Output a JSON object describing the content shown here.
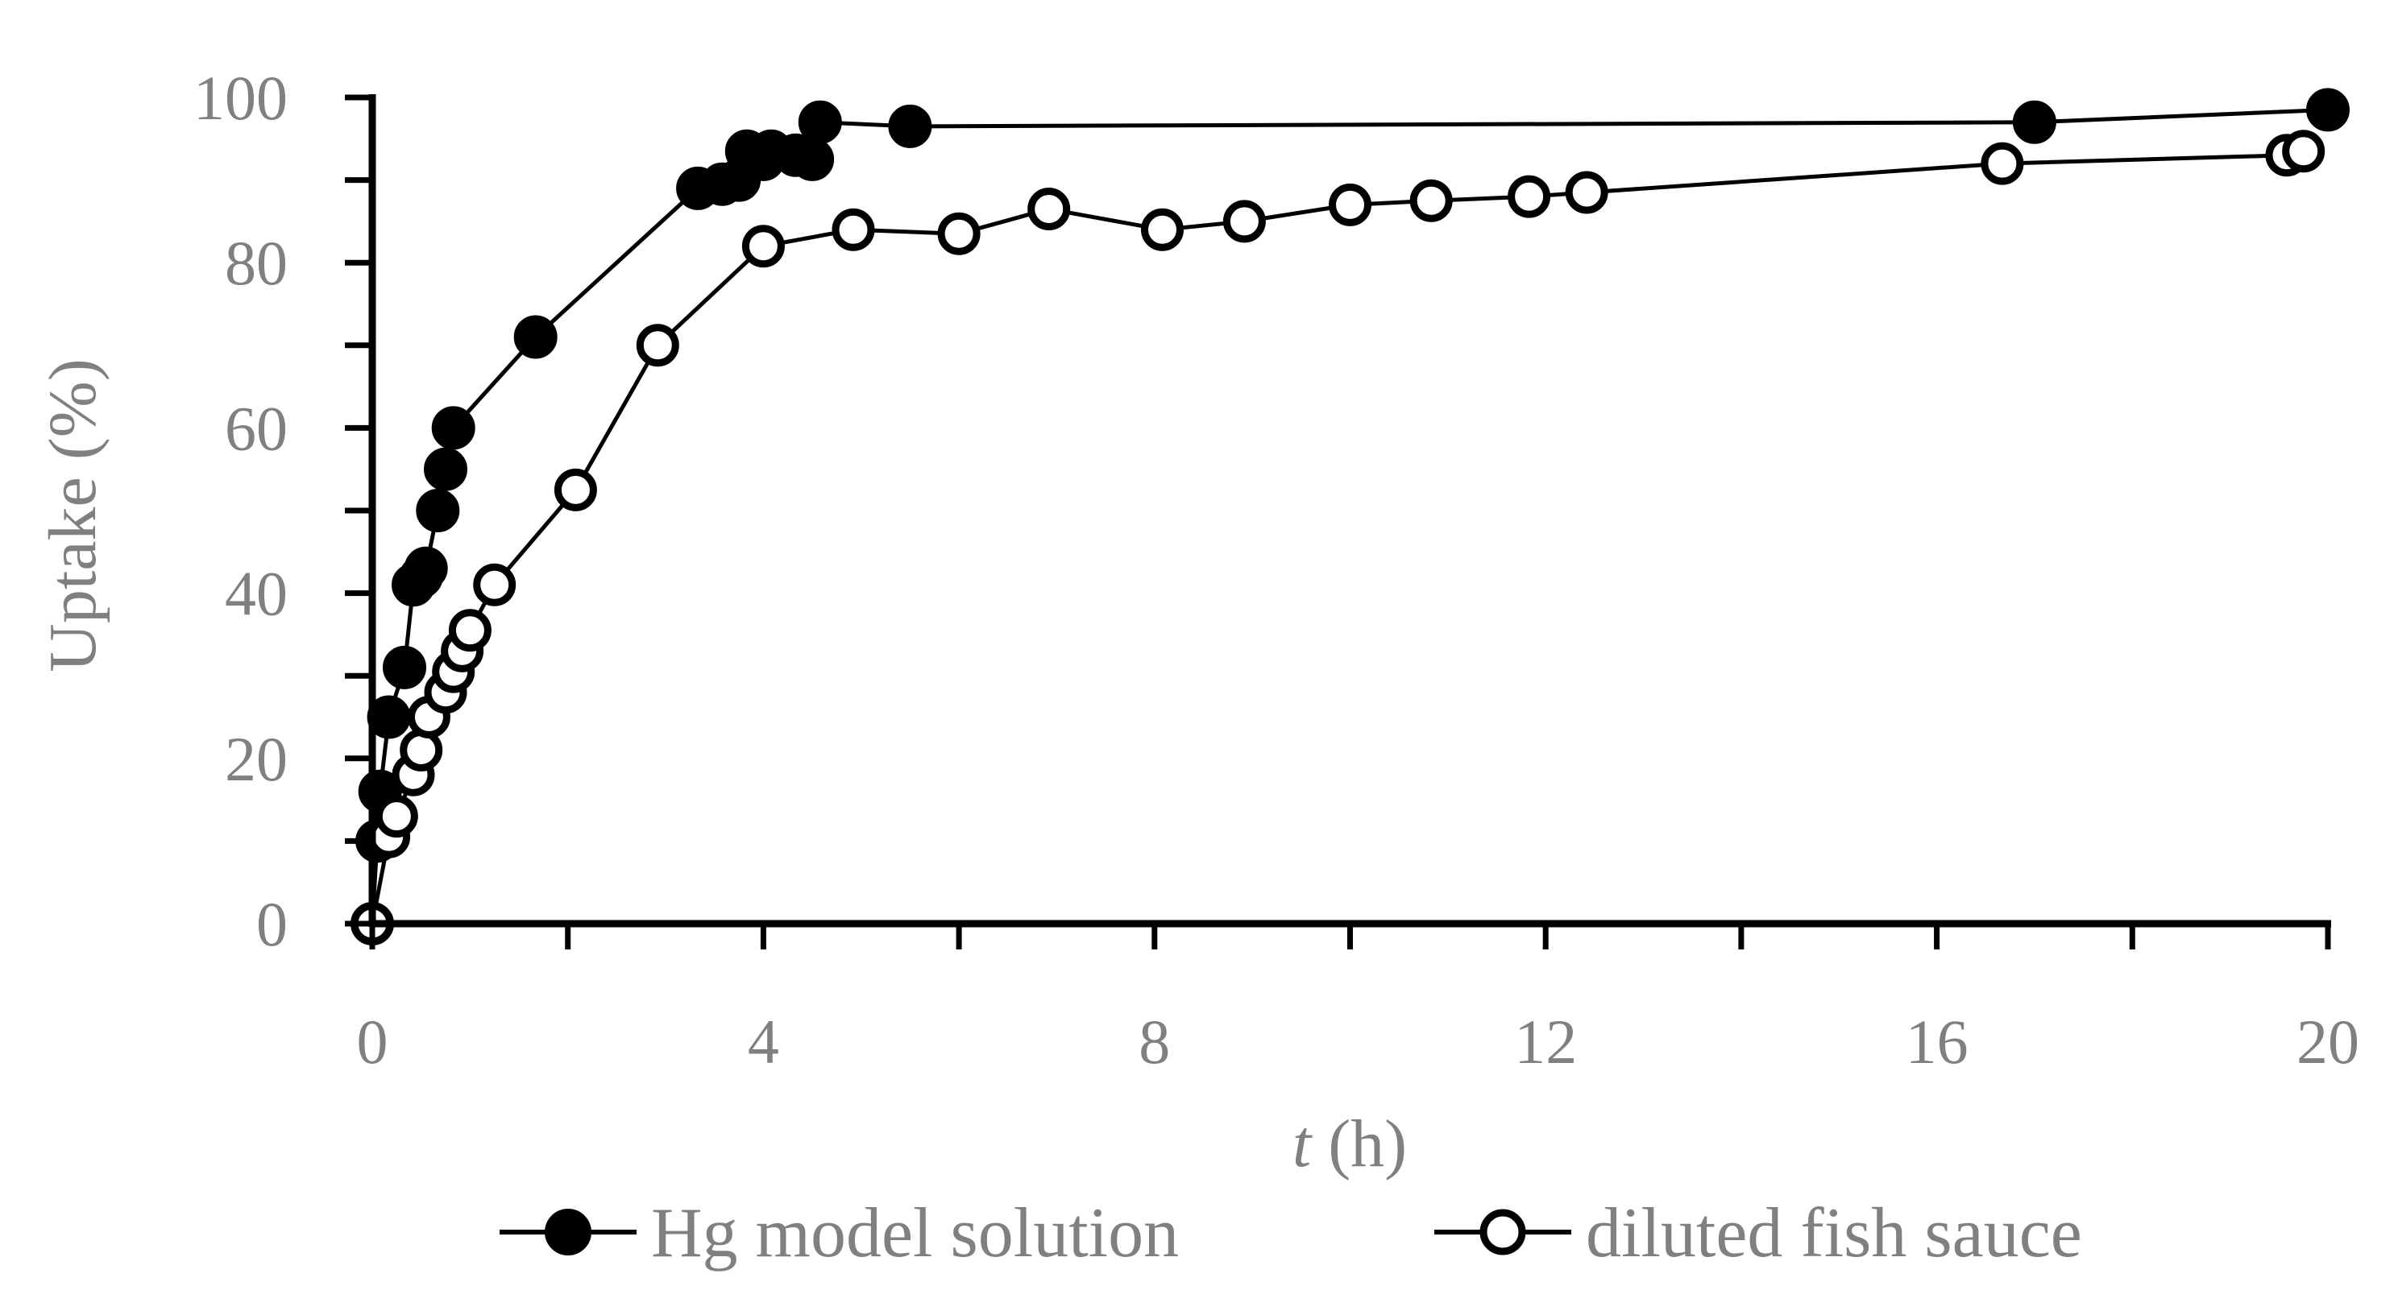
{
  "chart_data": {
    "type": "scatter",
    "xlabel": {
      "italic": "t",
      "rest": " (h)"
    },
    "ylabel": "Uptake (%)",
    "xlim": [
      0,
      20
    ],
    "ylim": [
      0,
      100
    ],
    "x_ticks": [
      0,
      4,
      8,
      12,
      16,
      20
    ],
    "x_minor_ticks": [
      2,
      6,
      10,
      14,
      18
    ],
    "y_ticks": [
      0,
      20,
      40,
      60,
      80,
      100
    ],
    "y_minor_ticks": [
      10,
      30,
      50,
      70,
      90
    ],
    "grid": false,
    "legend_position": "bottom",
    "series": [
      {
        "name": "Hg model solution",
        "marker": "filled-circle",
        "color": "#000000",
        "points": [
          [
            0,
            0
          ],
          [
            0.05,
            10
          ],
          [
            0.08,
            16
          ],
          [
            0.17,
            25
          ],
          [
            0.33,
            31
          ],
          [
            0.42,
            41
          ],
          [
            0.5,
            42
          ],
          [
            0.55,
            43
          ],
          [
            0.67,
            50
          ],
          [
            0.75,
            55
          ],
          [
            0.83,
            60
          ],
          [
            1.67,
            71
          ],
          [
            3.33,
            89
          ],
          [
            3.58,
            89.5
          ],
          [
            3.75,
            90
          ],
          [
            3.83,
            93.5
          ],
          [
            4.0,
            92.5
          ],
          [
            4.08,
            93.5
          ],
          [
            4.33,
            93
          ],
          [
            4.5,
            92.5
          ],
          [
            4.58,
            97
          ],
          [
            5.5,
            96.5
          ],
          [
            17.0,
            97
          ],
          [
            20.0,
            98.5
          ]
        ]
      },
      {
        "name": "diluted fish sauce",
        "marker": "open-circle",
        "color": "#000000",
        "points": [
          [
            0,
            0
          ],
          [
            0.17,
            10.5
          ],
          [
            0.25,
            13
          ],
          [
            0.42,
            18
          ],
          [
            0.5,
            21
          ],
          [
            0.58,
            25
          ],
          [
            0.75,
            28
          ],
          [
            0.83,
            30.5
          ],
          [
            0.92,
            33
          ],
          [
            1.0,
            35.5
          ],
          [
            1.25,
            41
          ],
          [
            2.08,
            52.5
          ],
          [
            2.92,
            70
          ],
          [
            4.0,
            82
          ],
          [
            4.92,
            84
          ],
          [
            6.0,
            83.5
          ],
          [
            6.92,
            86.5
          ],
          [
            8.08,
            84
          ],
          [
            8.92,
            85
          ],
          [
            10.0,
            87
          ],
          [
            10.83,
            87.5
          ],
          [
            11.83,
            88
          ],
          [
            12.42,
            88.5
          ],
          [
            16.67,
            92
          ],
          [
            19.58,
            93
          ],
          [
            19.75,
            93.5
          ]
        ]
      }
    ]
  }
}
